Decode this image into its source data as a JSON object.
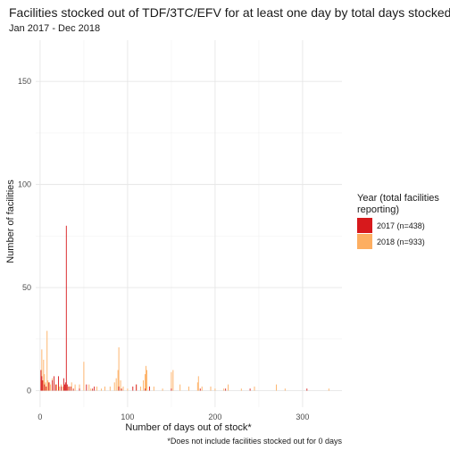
{
  "chart_data": {
    "type": "bar",
    "title": "Facilities stocked out of TDF/3TC/EFV for at least one day by total days stocked out",
    "subtitle": "Jan 2017 - Dec 2018",
    "xlabel": "Number of days out of stock*",
    "ylabel": "Number of facilities",
    "caption": "*Does not include facilities stocked out for 0 days",
    "xlim": [
      -5,
      345
    ],
    "ylim": [
      -8,
      170
    ],
    "x_ticks": [
      0,
      100,
      200,
      300
    ],
    "y_ticks": [
      0,
      50,
      100,
      150
    ],
    "grid": true,
    "legend": {
      "title_lines": [
        "Year (total facilities",
        "reporting)"
      ],
      "position": "right"
    },
    "series": [
      {
        "name": "2017 (n=438)",
        "color": "#d7191c",
        "x": [
          1,
          2,
          3,
          5,
          7,
          10,
          14,
          16,
          18,
          21,
          24,
          27,
          28,
          29,
          30,
          31,
          33,
          35,
          38,
          45,
          53,
          60,
          62,
          90,
          93,
          106,
          110,
          120,
          125,
          150,
          183,
          212,
          240,
          305
        ],
        "y": [
          10,
          7,
          5,
          3,
          2,
          4,
          5,
          7,
          3,
          7,
          2,
          6,
          3,
          4,
          80,
          3,
          2,
          2,
          1,
          1,
          3,
          1,
          2,
          2,
          1,
          2,
          3,
          1,
          2,
          1,
          1,
          1,
          1,
          1
        ]
      },
      {
        "name": "2018 (n=933)",
        "color": "#fdae61",
        "x": [
          1,
          2,
          4,
          5,
          6,
          8,
          9,
          11,
          12,
          14,
          16,
          19,
          22,
          24,
          26,
          29,
          32,
          36,
          40,
          45,
          50,
          56,
          58,
          65,
          70,
          74,
          80,
          85,
          87,
          89,
          90,
          92,
          95,
          100,
          110,
          115,
          118,
          120,
          121,
          122,
          125,
          130,
          140,
          150,
          152,
          160,
          170,
          180,
          181,
          185,
          195,
          200,
          210,
          215,
          230,
          245,
          270,
          280,
          330
        ],
        "y": [
          5,
          20,
          15,
          8,
          4,
          29,
          5,
          4,
          3,
          6,
          4,
          3,
          2,
          3,
          2,
          3,
          2,
          4,
          3,
          3,
          14,
          3,
          1,
          2,
          1,
          2,
          2,
          4,
          6,
          10,
          21,
          5,
          2,
          1,
          3,
          2,
          5,
          8,
          12,
          10,
          2,
          2,
          1,
          9,
          10,
          3,
          2,
          4,
          7,
          2,
          2,
          1,
          1,
          3,
          1,
          2,
          3,
          1,
          1
        ]
      }
    ]
  }
}
